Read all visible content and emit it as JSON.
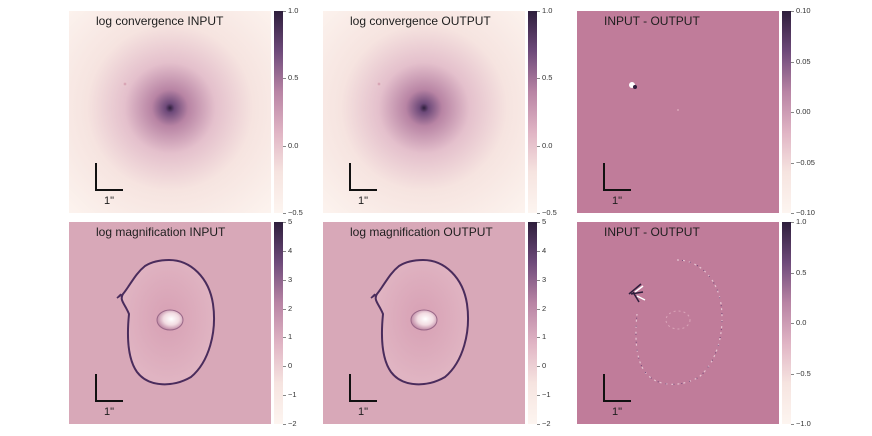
{
  "panels": [
    {
      "title": "log convergence INPUT",
      "scale_label": "1\"",
      "colorbar": {
        "min": -0.5,
        "max": 1.0,
        "ticks": [
          "1.0",
          "0.5",
          "0.0",
          "−0.5"
        ],
        "tick_values": [
          1.0,
          0.5,
          0.0,
          -0.5
        ]
      }
    },
    {
      "title": "log convergence OUTPUT",
      "scale_label": "1\"",
      "colorbar": {
        "min": -0.5,
        "max": 1.0,
        "ticks": [
          "1.0",
          "0.5",
          "0.0",
          "−0.5"
        ],
        "tick_values": [
          1.0,
          0.5,
          0.0,
          -0.5
        ]
      }
    },
    {
      "title": "INPUT - OUTPUT",
      "scale_label": "1\"",
      "colorbar": {
        "min": -0.1,
        "max": 0.1,
        "ticks": [
          "0.10",
          "0.05",
          "0.00",
          "−0.05",
          "−0.10"
        ],
        "tick_values": [
          0.1,
          0.05,
          0.0,
          -0.05,
          -0.1
        ]
      }
    },
    {
      "title": "log magnification INPUT",
      "scale_label": "1\"",
      "colorbar": {
        "min": -2,
        "max": 5,
        "ticks": [
          "5",
          "4",
          "3",
          "2",
          "1",
          "0",
          "−1",
          "−2"
        ],
        "tick_values": [
          5,
          4,
          3,
          2,
          1,
          0,
          -1,
          -2
        ]
      }
    },
    {
      "title": "log magnification OUTPUT",
      "scale_label": "1\"",
      "colorbar": {
        "min": -2,
        "max": 5,
        "ticks": [
          "5",
          "4",
          "3",
          "2",
          "1",
          "0",
          "−1",
          "−2"
        ],
        "tick_values": [
          5,
          4,
          3,
          2,
          1,
          0,
          -1,
          -2
        ]
      }
    },
    {
      "title": "INPUT - OUTPUT",
      "scale_label": "1\"",
      "colorbar": {
        "min": -1.0,
        "max": 1.0,
        "ticks": [
          "1.0",
          "0.5",
          "0.0",
          "−0.5",
          "−1.0"
        ],
        "tick_values": [
          1.0,
          0.5,
          0.0,
          -0.5,
          -1.0
        ]
      }
    }
  ],
  "colors": {
    "colormap_low": "#fdf5f0",
    "colormap_mid": "#c98aa4",
    "colormap_high": "#2e1e3c",
    "residual_background": "#c07c9a",
    "magnification_background": "#d8a8b8",
    "critical_curve": "#4a2c5c"
  }
}
